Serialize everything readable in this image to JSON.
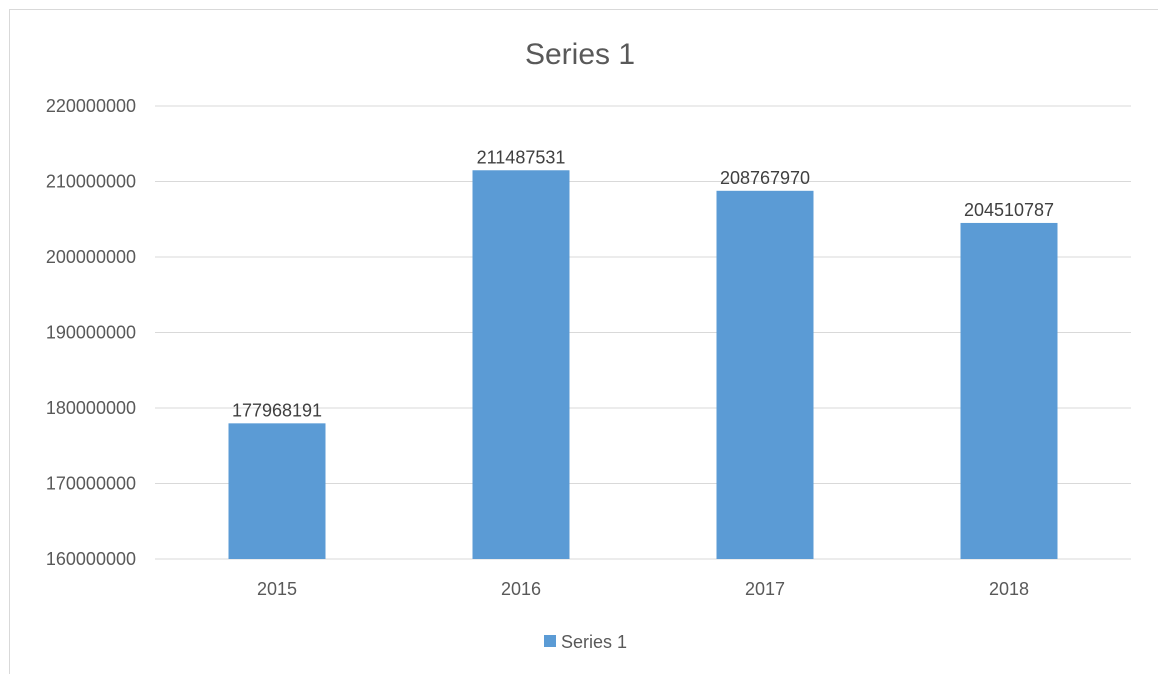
{
  "chart_data": {
    "type": "bar",
    "title": "Series 1",
    "categories": [
      "2015",
      "2016",
      "2017",
      "2018"
    ],
    "series": [
      {
        "name": "Series 1",
        "values": [
          177968191,
          211487531,
          208767970,
          204510787
        ],
        "color": "#5b9bd5"
      }
    ],
    "ylim": [
      160000000,
      220000000
    ],
    "yticks": [
      "160000000",
      "170000000",
      "180000000",
      "190000000",
      "200000000",
      "210000000",
      "220000000"
    ],
    "data_labels": [
      "177968191",
      "211487531",
      "208767970",
      "204510787"
    ],
    "grid": true,
    "legend": "bottom",
    "gridline_color": "#d9d9d9",
    "xlabel": "",
    "ylabel": ""
  }
}
